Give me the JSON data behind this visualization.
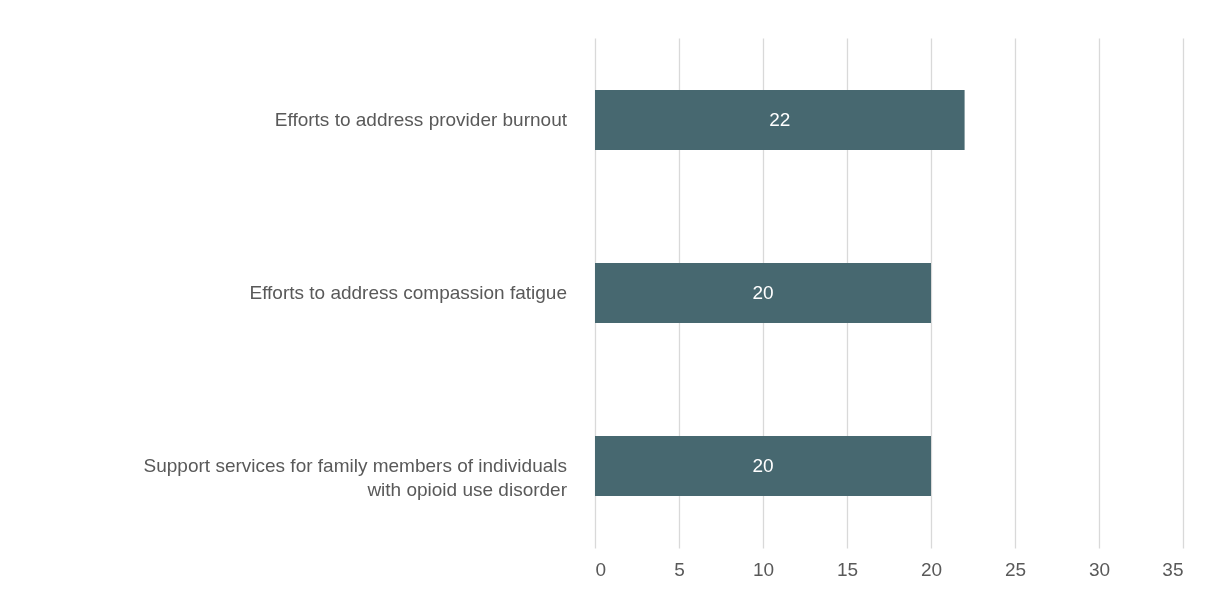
{
  "chart_data": {
    "type": "bar",
    "orientation": "horizontal",
    "categories": [
      "Efforts to address provider burnout",
      "Efforts to address compassion fatigue",
      "Support services for family members of individuals with opioid use disorder"
    ],
    "values": [
      22,
      20,
      20
    ],
    "color": "#476870",
    "xlim": [
      0,
      35
    ],
    "xticks": [
      0,
      5,
      10,
      15,
      20,
      25,
      30,
      35
    ],
    "grid": "x",
    "data_labels": true
  }
}
